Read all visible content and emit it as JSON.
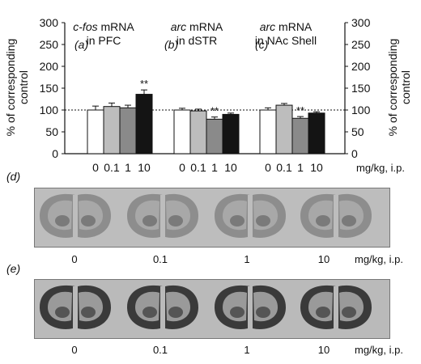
{
  "chart_data": [
    {
      "type": "bar",
      "panel_label": "(a)",
      "title_italic": "c-fos",
      "title_rest": " mRNA",
      "title_line2": "in PFC",
      "categories": [
        "0",
        "0.1",
        "1",
        "10"
      ],
      "values": [
        100,
        108,
        105,
        136
      ],
      "errors": [
        9,
        8,
        6,
        10
      ],
      "significance": [
        "",
        "",
        "",
        "**"
      ],
      "ylim": [
        0,
        300
      ],
      "yticks": [
        "0",
        "50",
        "100",
        "150",
        "200",
        "250",
        "300"
      ],
      "reference_line": 100,
      "colors": [
        "#ffffff",
        "#bdbdbd",
        "#8a8a8a",
        "#141414"
      ]
    },
    {
      "type": "bar",
      "panel_label": "(b)",
      "title_italic": "arc",
      "title_rest": " mRNA",
      "title_line2": "in dSTR",
      "categories": [
        "0",
        "0.1",
        "1",
        "10"
      ],
      "values": [
        100,
        98,
        79,
        90
      ],
      "errors": [
        4,
        4,
        5,
        3
      ],
      "significance": [
        "",
        "",
        "**",
        ""
      ],
      "ylim": [
        0,
        300
      ],
      "reference_line": 100,
      "colors": [
        "#ffffff",
        "#bdbdbd",
        "#8a8a8a",
        "#141414"
      ]
    },
    {
      "type": "bar",
      "panel_label": "(c)",
      "title_italic": "arc",
      "title_rest": " mRNA",
      "title_line2": "in NAc Shell",
      "categories": [
        "0",
        "0.1",
        "1",
        "10"
      ],
      "values": [
        100,
        111,
        81,
        93
      ],
      "errors": [
        5,
        4,
        4,
        3
      ],
      "significance": [
        "",
        "",
        "**",
        ""
      ],
      "ylim": [
        0,
        300
      ],
      "yticks": [
        "0",
        "50",
        "100",
        "150",
        "200",
        "250",
        "300"
      ],
      "reference_line": 100,
      "colors": [
        "#ffffff",
        "#bdbdbd",
        "#8a8a8a",
        "#141414"
      ]
    }
  ],
  "y_axis_label_line1": "% of corresponding",
  "y_axis_label_line2": "control",
  "x_unit_label": "mg/kg, i.p.",
  "panel_d": {
    "label": "(d)",
    "doses": [
      "0",
      "0.1",
      "1",
      "10"
    ],
    "unit": "mg/kg, i.p."
  },
  "panel_e": {
    "label": "(e)",
    "doses": [
      "0",
      "0.1",
      "1",
      "10"
    ],
    "unit": "mg/kg, i.p."
  }
}
